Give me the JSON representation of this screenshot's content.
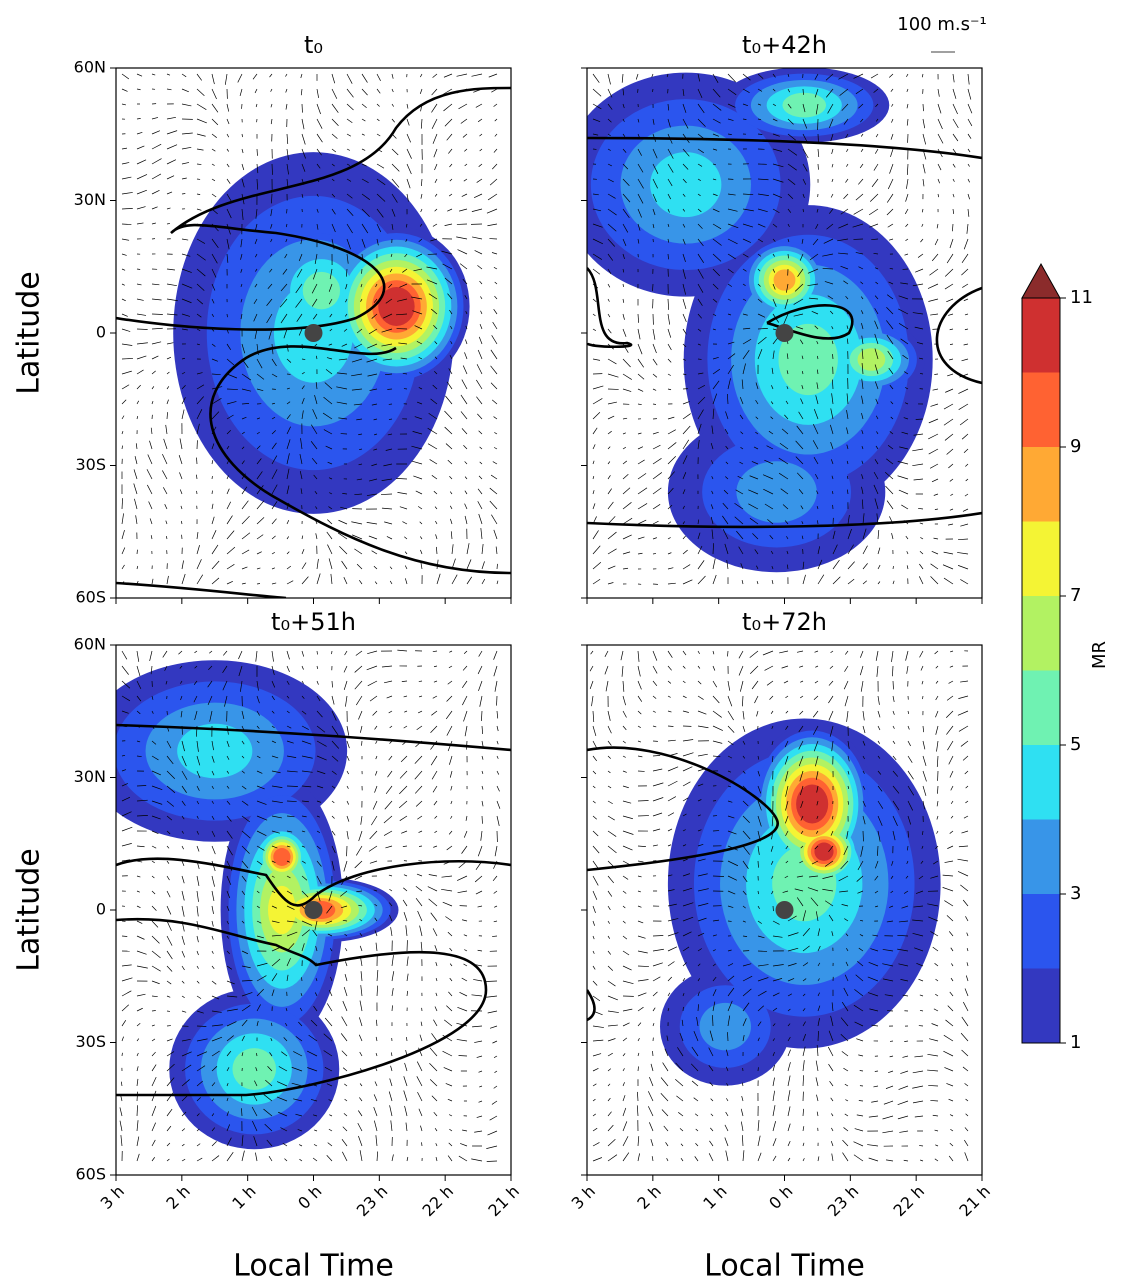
{
  "chart_data": {
    "type": "contour",
    "panels": [
      {
        "title": "t₀"
      },
      {
        "title": "t₀+42h"
      },
      {
        "title": "t₀+51h"
      },
      {
        "title": "t₀+72h"
      }
    ],
    "xlabel": "Local Time",
    "ylabel": "Latitude",
    "xticks": [
      "3 h",
      "2 h",
      "1 h",
      "0 h",
      "23 h",
      "22 h",
      "21 h"
    ],
    "ylim": [
      -60,
      60
    ],
    "yticks": [
      {
        "value": -60,
        "label": "60S"
      },
      {
        "value": -30,
        "label": "30S"
      },
      0,
      {
        "value": 30,
        "label": "30N"
      },
      {
        "value": 60,
        "label": "60N"
      }
    ],
    "colorbar": {
      "label": "MR",
      "levels": [
        1,
        2,
        3,
        4,
        5,
        6,
        7,
        8,
        9,
        10,
        11
      ],
      "ticks": [
        1,
        3,
        5,
        7,
        9,
        11
      ],
      "colors": [
        "#3338c0",
        "#2b55ee",
        "#3895e8",
        "#2fe0f2",
        "#6ff2b2",
        "#b2f262",
        "#f4f434",
        "#ffa934",
        "#ff6232",
        "#cf3030"
      ],
      "extend_color": "#8b2b2b"
    },
    "quiver_key": "100 m.s⁻¹"
  }
}
